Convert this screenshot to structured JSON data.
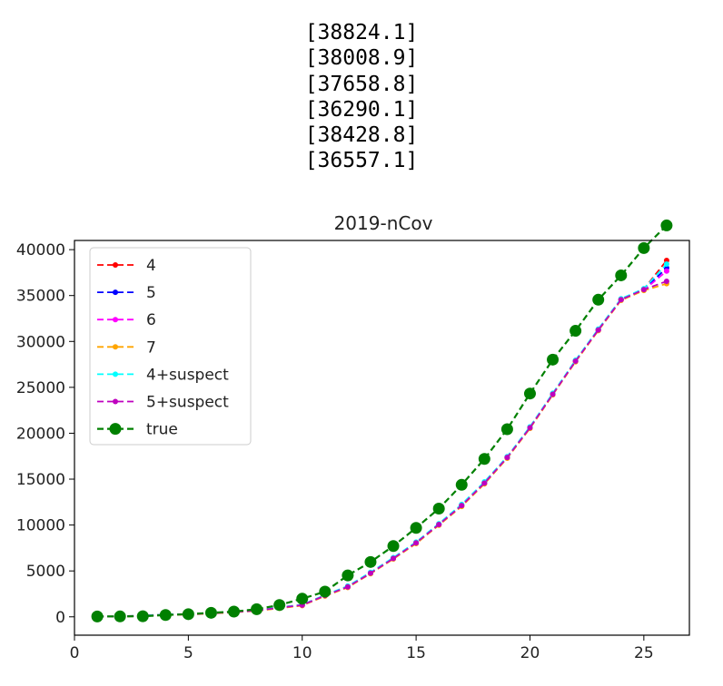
{
  "output_lines": [
    "[38824.1]",
    "[38008.9]",
    "[37658.8]",
    "[36290.1]",
    "[38428.8]",
    "[36557.1]"
  ],
  "chart_data": {
    "type": "line",
    "title": "2019-nCov",
    "xlabel": "",
    "ylabel": "",
    "xlim": [
      0,
      27
    ],
    "ylim": [
      -2000,
      41000
    ],
    "x_ticks": [
      0,
      5,
      10,
      15,
      20,
      25
    ],
    "y_ticks": [
      0,
      5000,
      10000,
      15000,
      20000,
      25000,
      30000,
      35000,
      40000
    ],
    "grid": false,
    "legend_position": "upper-left",
    "x": [
      1,
      2,
      3,
      4,
      5,
      6,
      7,
      8,
      9,
      10,
      11,
      12,
      13,
      14,
      15,
      16,
      17,
      18,
      19,
      20,
      21,
      22,
      23,
      24,
      25,
      26
    ],
    "true_values": [
      41,
      45,
      62,
      198,
      291,
      440,
      571,
      830,
      1287,
      1975,
      2744,
      4515,
      5974,
      7711,
      9692,
      11791,
      14380,
      17205,
      20438,
      24324,
      28018,
      31161,
      34546,
      37198,
      40171,
      42638
    ],
    "series": [
      {
        "name": "4",
        "color": "#ff0000",
        "marker": "dot",
        "values": [
          40,
          60,
          150,
          260,
          300,
          400,
          560,
          700,
          1050,
          1300,
          2350,
          3300,
          4800,
          6400,
          8100,
          10100,
          12200,
          14650,
          17400,
          20650,
          24300,
          27900,
          31300,
          34600,
          35700,
          38824.1
        ]
      },
      {
        "name": "5",
        "color": "#0000ff",
        "marker": "dot",
        "values": [
          30,
          40,
          120,
          230,
          280,
          380,
          520,
          680,
          990,
          1260,
          2300,
          3250,
          4750,
          6350,
          8050,
          10050,
          12100,
          14550,
          17350,
          20600,
          24250,
          27850,
          31250,
          34550,
          35650,
          38008.9
        ]
      },
      {
        "name": "6",
        "color": "#ff00ff",
        "marker": "dot",
        "values": [
          20,
          30,
          90,
          200,
          260,
          360,
          500,
          660,
          950,
          1240,
          2280,
          3220,
          4720,
          6320,
          8000,
          10000,
          12050,
          14500,
          17300,
          20550,
          24200,
          27800,
          31200,
          34500,
          35600,
          37658.8
        ]
      },
      {
        "name": "7",
        "color": "#ffa500",
        "marker": "dot",
        "values": [
          20,
          30,
          80,
          190,
          250,
          350,
          490,
          650,
          930,
          1230,
          2260,
          3200,
          4700,
          6300,
          7980,
          9980,
          12030,
          14480,
          17280,
          20520,
          24180,
          27780,
          31180,
          34480,
          35550,
          36290.1
        ]
      },
      {
        "name": "4+suspect",
        "color": "#00ffff",
        "marker": "dot",
        "values": [
          40,
          60,
          140,
          250,
          300,
          400,
          550,
          700,
          1040,
          1320,
          2380,
          3350,
          4850,
          6450,
          8150,
          10150,
          12250,
          14700,
          17450,
          20700,
          24350,
          27950,
          31350,
          34650,
          35750,
          38428.8
        ]
      },
      {
        "name": "5+suspect",
        "color": "#bf00bf",
        "marker": "dot",
        "values": [
          30,
          50,
          110,
          220,
          280,
          380,
          520,
          680,
          990,
          1280,
          2320,
          3260,
          4760,
          6360,
          8060,
          10060,
          12120,
          14570,
          17360,
          20600,
          24250,
          27850,
          31250,
          34550,
          35650,
          36557.1
        ]
      },
      {
        "name": "true",
        "color": "#008000",
        "marker": "circle",
        "values": [
          41,
          45,
          62,
          198,
          291,
          440,
          571,
          830,
          1287,
          1975,
          2744,
          4515,
          5974,
          7711,
          9692,
          11791,
          14380,
          17205,
          20438,
          24324,
          28018,
          31161,
          34546,
          37198,
          40171,
          42638
        ]
      }
    ]
  }
}
